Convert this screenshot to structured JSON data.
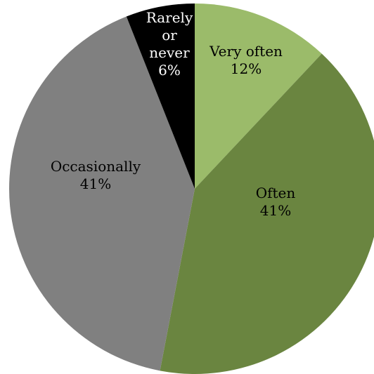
{
  "chart_data": {
    "type": "pie",
    "categories": [
      "Very often",
      "Often",
      "Occasionally",
      "Rarely or never"
    ],
    "values": [
      12,
      41,
      41,
      6
    ],
    "value_labels": [
      "12%",
      "41%",
      "41%",
      "6%"
    ],
    "colors": [
      "#9bbb6a",
      "#6a8540",
      "#808080",
      "#000000"
    ],
    "label_colors": [
      "#000000",
      "#000000",
      "#000000",
      "#ffffff"
    ],
    "start_angle_deg": 0,
    "direction": "clockwise",
    "legend": "none"
  }
}
